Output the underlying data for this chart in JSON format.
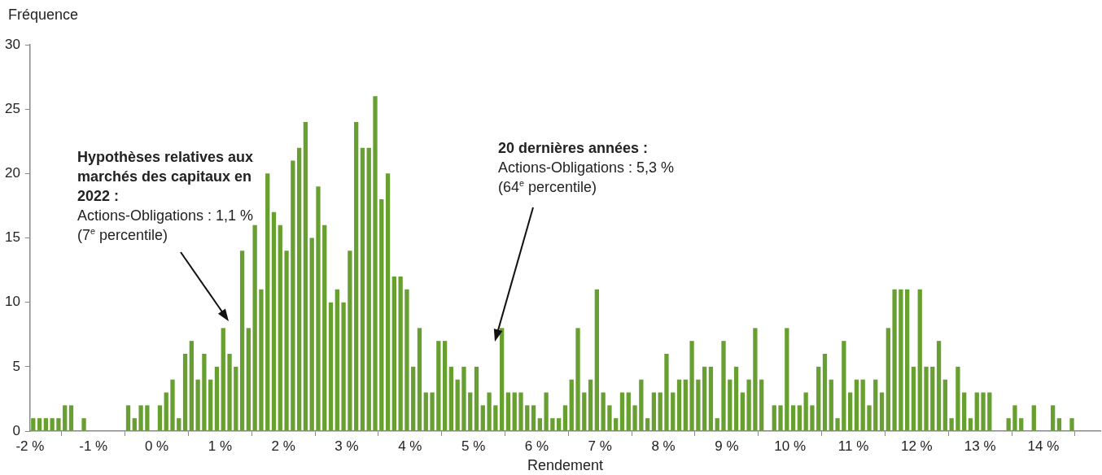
{
  "chart_data": {
    "type": "histogram",
    "xlabel": "Rendement",
    "ylabel": "Fréquence",
    "annotations": [
      "Hypothèses relatives aux marchés des capitaux en 2022 :\nActions-Obligations : 1,1 % (7$^{e}$ percentile)",
      "20 dernières années :\nActions-Obligations : 5,3 %\n(64$^{e}$ percentile)"
    ],
    "bins": [
      -2,
      -1.9,
      -1.8,
      -1.7,
      -1.6,
      -1.5,
      -1.4,
      -1.3,
      -1.2,
      -1.1,
      -1,
      -0.9,
      -0.8,
      -0.7,
      -0.6,
      -0.5,
      -0.4,
      -0.3,
      -0.2,
      -0.1,
      0,
      0.1,
      0.2,
      0.3,
      0.4,
      0.5,
      0.6,
      0.7,
      0.8,
      0.9,
      1,
      1.1,
      1.2,
      1.3,
      1.4,
      1.5,
      1.6,
      1.7,
      1.8,
      1.9,
      2,
      2.1,
      2.2,
      2.3,
      2.4,
      2.5,
      2.6,
      2.7,
      2.8,
      2.9,
      3,
      3.1,
      3.2,
      3.3,
      3.4,
      3.5,
      3.6,
      3.7,
      3.8,
      3.9,
      4,
      4.1,
      4.2,
      4.3,
      4.4,
      4.5,
      4.6,
      4.7,
      4.8,
      4.9,
      5,
      5.1,
      5.2,
      5.3,
      5.4,
      5.5,
      5.6,
      5.7,
      5.8,
      5.9,
      6,
      6.1,
      6.2,
      6.3,
      6.4,
      6.5,
      6.6,
      6.7,
      6.8,
      6.9,
      7,
      7.1,
      7.2,
      7.3,
      7.4,
      7.5,
      7.6,
      7.7,
      7.8,
      7.9,
      8,
      8.1,
      8.2,
      8.3,
      8.4,
      8.5,
      8.6,
      8.7,
      8.8,
      8.9,
      9,
      9.1,
      9.2,
      9.3,
      9.4,
      9.5,
      9.6,
      9.7,
      9.8,
      9.9,
      10,
      10.1,
      10.2,
      10.3,
      10.4,
      10.5,
      10.6,
      10.7,
      10.8,
      10.9,
      11,
      11.1,
      11.2,
      11.3,
      11.4,
      11.5,
      11.6,
      11.7,
      11.8,
      11.9,
      12,
      12.1,
      12.2,
      12.3,
      12.4,
      12.5,
      12.6,
      12.7,
      12.8,
      12.9,
      13,
      13.1,
      13.2,
      13.3,
      13.4,
      13.5,
      13.6,
      13.7,
      13.8,
      13.9,
      14,
      14.1,
      14.2,
      14.3,
      14.4,
      14.5
    ],
    "values": [
      1,
      1,
      1,
      1,
      1,
      2,
      2,
      0,
      1,
      0,
      0,
      0,
      0,
      0,
      0,
      2,
      1,
      2,
      2,
      0,
      2,
      3,
      4,
      1,
      6,
      7,
      4,
      6,
      4,
      5,
      8,
      6,
      5,
      14,
      8,
      16,
      11,
      20,
      17,
      16,
      14,
      21,
      22,
      24,
      15,
      19,
      16,
      10,
      11,
      10,
      14,
      24,
      22,
      22,
      26,
      18,
      20,
      12,
      12,
      11,
      5,
      8,
      3,
      3,
      7,
      7,
      5,
      4,
      5,
      3,
      5,
      2,
      3,
      2,
      8,
      3,
      3,
      3,
      2,
      2,
      1,
      3,
      1,
      1,
      2,
      4,
      8,
      3,
      4,
      11,
      3,
      2,
      1,
      3,
      3,
      2,
      4,
      1,
      3,
      3,
      6,
      3,
      4,
      4,
      7,
      4,
      5,
      5,
      1,
      7,
      4,
      5,
      3,
      4,
      8,
      4,
      0,
      2,
      2,
      8,
      2,
      2,
      3,
      2,
      5,
      6,
      4,
      1,
      7,
      3,
      4,
      4,
      2,
      4,
      3,
      8,
      11,
      11,
      11,
      5,
      11,
      5,
      5,
      7,
      4,
      1,
      5,
      3,
      1,
      3,
      3,
      3,
      0,
      0,
      1,
      2,
      1,
      0,
      2,
      0,
      0,
      2,
      1,
      0,
      1
    ],
    "color": "#67a030",
    "xlim": [
      -2,
      14.9
    ],
    "xticks": [
      {
        "value": -2,
        "label": "-2 %"
      },
      {
        "value": -1,
        "label": "-1 %"
      },
      {
        "value": 0,
        "label": "0 %"
      },
      {
        "value": 1,
        "label": "1 %"
      },
      {
        "value": 2,
        "label": "2 %"
      },
      {
        "value": 3,
        "label": "3 %"
      },
      {
        "value": 4,
        "label": "4 %"
      },
      {
        "value": 5,
        "label": "5 %"
      },
      {
        "value": 6,
        "label": "6 %"
      },
      {
        "value": 7,
        "label": "7 %"
      },
      {
        "value": 8,
        "label": "8 %"
      },
      {
        "value": 9,
        "label": "9 %"
      },
      {
        "value": 10,
        "label": "10 %"
      },
      {
        "value": 11,
        "label": "11 %"
      },
      {
        "value": 12,
        "label": "12 %"
      },
      {
        "value": 13,
        "label": "13 %"
      },
      {
        "value": 14,
        "label": "14 %"
      }
    ],
    "ylim": [
      0,
      30
    ],
    "yticks": [
      0,
      5,
      10,
      15,
      20,
      25,
      30
    ]
  }
}
